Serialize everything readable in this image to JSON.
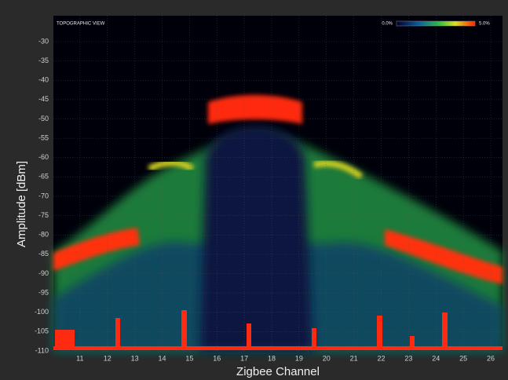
{
  "chart_data": {
    "type": "density",
    "title": "TOPOGRAPHIC VIEW",
    "colorbar_labels": [
      "0.0%",
      "5.0%"
    ],
    "y_label": "Amplitude [dBm]",
    "x_label": "Zigbee Channel",
    "ylim": [
      -110,
      -23.3
    ],
    "yticks": [
      -30,
      -35,
      -40,
      -45,
      -50,
      -55,
      -60,
      -65,
      -70,
      -75,
      -80,
      -85,
      -90,
      -95,
      -100,
      -105,
      -110
    ],
    "xlim": [
      10.03,
      26.43
    ],
    "xticks": [
      11,
      12,
      13,
      14,
      15,
      16,
      17,
      18,
      19,
      20,
      21,
      22,
      23,
      24,
      25,
      26
    ],
    "grid": true
  }
}
